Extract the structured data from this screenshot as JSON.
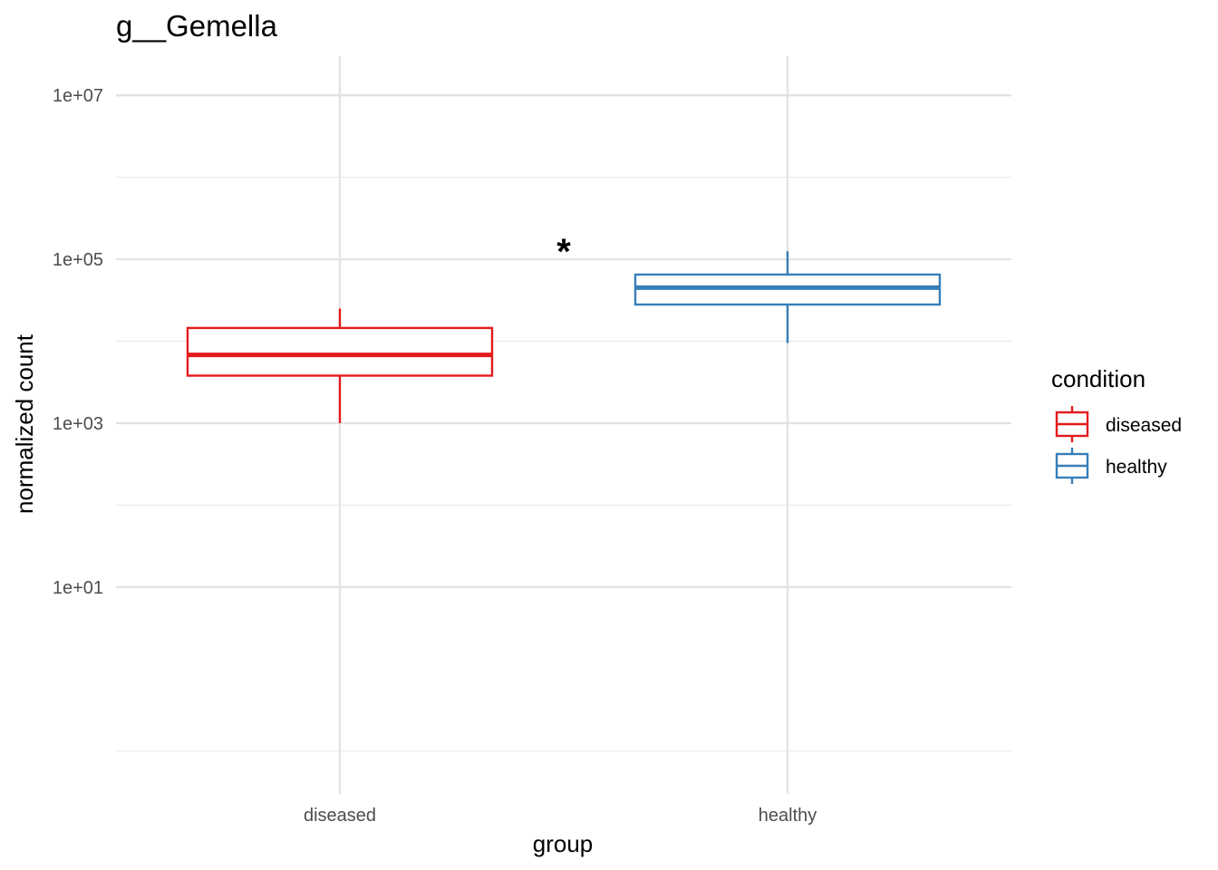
{
  "chart_data": {
    "type": "boxplot",
    "title": "g__Gemella",
    "xlabel": "group",
    "ylabel": "normalized count",
    "y_scale": "log10",
    "ylim": [
      0.03,
      30000000
    ],
    "y_ticks": [
      10,
      1000,
      100000,
      10000000
    ],
    "y_tick_labels": [
      "1e+01",
      "1e+03",
      "1e+05",
      "1e+07"
    ],
    "y_minor_gridlines": [
      0.1,
      100,
      10000,
      1000000
    ],
    "categories": [
      "diseased",
      "healthy"
    ],
    "grid": true,
    "legend": {
      "title": "condition",
      "position": "right",
      "entries": [
        "diseased",
        "healthy"
      ]
    },
    "series": [
      {
        "name": "diseased",
        "color": "#e41a1c",
        "category": "diseased",
        "whisker_low": 1000,
        "q1": 3800,
        "median": 6800,
        "q3": 14500,
        "whisker_high": 25000
      },
      {
        "name": "healthy",
        "color": "#377eb8",
        "category": "healthy",
        "whisker_low": 9500,
        "q1": 28000,
        "median": 45000,
        "q3": 65000,
        "whisker_high": 125000
      }
    ],
    "annotations": [
      {
        "text": "*",
        "x": 1.5,
        "y": 180000
      }
    ]
  }
}
